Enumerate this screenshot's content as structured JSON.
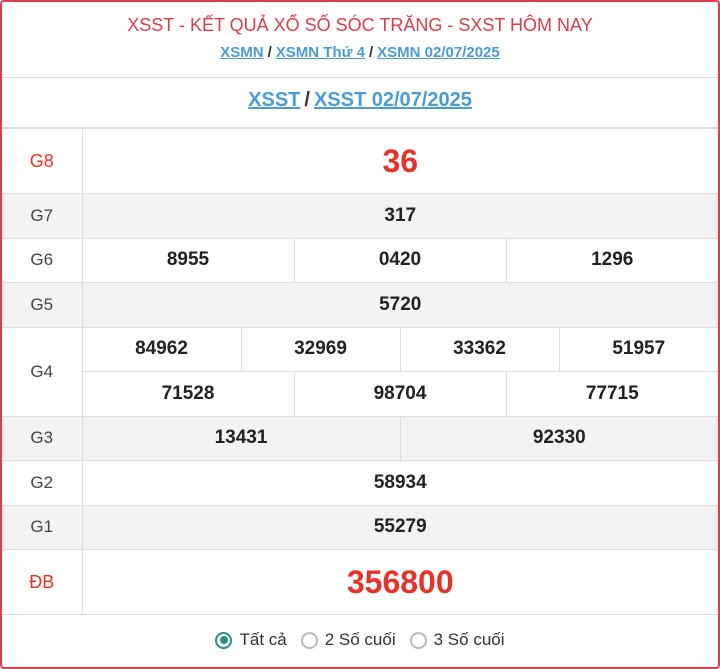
{
  "header": {
    "title": "XSST - KẾT QUẢ XỔ SỐ SÓC TRĂNG - SXST HÔM NAY",
    "breadcrumb": [
      "XSMN",
      "XSMN Thứ 4",
      "XSMN 02/07/2025"
    ],
    "sub": [
      "XSST",
      "XSST 02/07/2025"
    ],
    "sep": "/"
  },
  "results": {
    "G8": {
      "label": "G8",
      "values": [
        "36"
      ]
    },
    "G7": {
      "label": "G7",
      "values": [
        "317"
      ]
    },
    "G6": {
      "label": "G6",
      "values": [
        "8955",
        "0420",
        "1296"
      ]
    },
    "G5": {
      "label": "G5",
      "values": [
        "5720"
      ]
    },
    "G4": {
      "label": "G4",
      "values": [
        "84962",
        "32969",
        "33362",
        "51957",
        "71528",
        "98704",
        "77715"
      ]
    },
    "G3": {
      "label": "G3",
      "values": [
        "13431",
        "92330"
      ]
    },
    "G2": {
      "label": "G2",
      "values": [
        "58934"
      ]
    },
    "G1": {
      "label": "G1",
      "values": [
        "55279"
      ]
    },
    "DB": {
      "label": "ĐB",
      "values": [
        "356800"
      ]
    }
  },
  "filter": {
    "options": [
      "Tất cả",
      "2 Số cuối",
      "3 Số cuối"
    ],
    "selected": "Tất cả"
  },
  "colors": {
    "accent": "#d6404c",
    "prize_red": "#e5332a",
    "link": "#4a9bd6",
    "radio": "#2e8b80"
  }
}
